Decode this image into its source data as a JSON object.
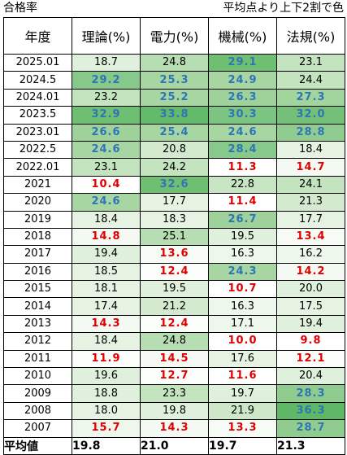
{
  "captions": {
    "left": "合格率",
    "right": "平均点より上下2割で色"
  },
  "headers": [
    "年度",
    "理論(%)",
    "電力(%)",
    "機械(%)",
    "法規(%)"
  ],
  "rows": [
    {
      "year": "2025.01",
      "v": [
        "18.7",
        "24.8",
        "29.1",
        "23.1"
      ],
      "bg": [
        "#dff0dc",
        "#b7ddb2",
        "#6fbf72",
        "#c4e3bf"
      ],
      "st": [
        "",
        "",
        "hi",
        ""
      ]
    },
    {
      "year": "2024.5",
      "v": [
        "29.2",
        "25.3",
        "24.9",
        "24.4"
      ],
      "bg": [
        "#86c98a",
        "#a8d6a3",
        "#a8d6a3",
        "#c4e3bf"
      ],
      "st": [
        "hi",
        "hi",
        "hi",
        ""
      ]
    },
    {
      "year": "2024.01",
      "v": [
        "23.2",
        "25.2",
        "26.3",
        "27.3"
      ],
      "bg": [
        "#c4e3bf",
        "#a8d6a3",
        "#9ed29a",
        "#a2d49e"
      ],
      "st": [
        "",
        "hi",
        "hi",
        "hi"
      ]
    },
    {
      "year": "2023.5",
      "v": [
        "32.9",
        "33.8",
        "30.3",
        "32.0"
      ],
      "bg": [
        "#6fbf72",
        "#63ba6a",
        "#7cc481",
        "#74c079"
      ],
      "st": [
        "hi",
        "hi",
        "hi",
        "hi"
      ]
    },
    {
      "year": "2023.01",
      "v": [
        "26.6",
        "25.4",
        "24.6",
        "28.8"
      ],
      "bg": [
        "#9ed29a",
        "#a8d6a3",
        "#a8d6a3",
        "#90cc90"
      ],
      "st": [
        "hi",
        "hi",
        "hi",
        "hi"
      ]
    },
    {
      "year": "2022.5",
      "v": [
        "24.6",
        "20.8",
        "28.4",
        "18.4"
      ],
      "bg": [
        "#a8d6a3",
        "#d3eacf",
        "#86c98a",
        "#e6f3e3"
      ],
      "st": [
        "hi",
        "",
        "hi",
        ""
      ]
    },
    {
      "year": "2022.01",
      "v": [
        "23.1",
        "24.2",
        "11.3",
        "14.7"
      ],
      "bg": [
        "#c4e3bf",
        "#c4e3bf",
        "#ffffff",
        "#f4f9f3"
      ],
      "st": [
        "",
        "",
        "lo",
        "lo"
      ]
    },
    {
      "year": "2021",
      "v": [
        "10.4",
        "32.6",
        "22.8",
        "24.1"
      ],
      "bg": [
        "#ffffff",
        "#6fbf72",
        "#c8e5c3",
        "#c4e3bf"
      ],
      "st": [
        "lo",
        "hi",
        "",
        ""
      ]
    },
    {
      "year": "2020",
      "v": [
        "24.6",
        "17.7",
        "11.4",
        "21.3"
      ],
      "bg": [
        "#a8d6a3",
        "#e6f3e3",
        "#ffffff",
        "#d3eacf"
      ],
      "st": [
        "hi",
        "",
        "lo",
        ""
      ]
    },
    {
      "year": "2019",
      "v": [
        "18.4",
        "18.3",
        "26.7",
        "17.7"
      ],
      "bg": [
        "#e6f3e3",
        "#e6f3e3",
        "#9ed29a",
        "#e6f3e3"
      ],
      "st": [
        "",
        "",
        "hi",
        ""
      ]
    },
    {
      "year": "2018",
      "v": [
        "14.8",
        "25.1",
        "19.5",
        "13.4"
      ],
      "bg": [
        "#f4f9f3",
        "#b7ddb2",
        "#dff0dc",
        "#f7fbf6"
      ],
      "st": [
        "lo",
        "",
        "",
        "lo"
      ]
    },
    {
      "year": "2017",
      "v": [
        "19.4",
        "13.6",
        "16.3",
        "16.2"
      ],
      "bg": [
        "#dff0dc",
        "#f7fbf6",
        "#eef7ec",
        "#eef7ec"
      ],
      "st": [
        "",
        "lo",
        "",
        ""
      ]
    },
    {
      "year": "2016",
      "v": [
        "18.5",
        "12.4",
        "24.3",
        "14.2"
      ],
      "bg": [
        "#e6f3e3",
        "#fafdf9",
        "#a8d6a3",
        "#f4f9f3"
      ],
      "st": [
        "",
        "lo",
        "hi",
        "lo"
      ]
    },
    {
      "year": "2015",
      "v": [
        "18.1",
        "19.5",
        "10.7",
        "20.0"
      ],
      "bg": [
        "#e6f3e3",
        "#dff0dc",
        "#ffffff",
        "#dff0dc"
      ],
      "st": [
        "",
        "",
        "lo",
        ""
      ]
    },
    {
      "year": "2014",
      "v": [
        "17.4",
        "21.2",
        "16.3",
        "17.5"
      ],
      "bg": [
        "#e6f3e3",
        "#d3eacf",
        "#eef7ec",
        "#e6f3e3"
      ],
      "st": [
        "",
        "",
        "",
        ""
      ]
    },
    {
      "year": "2013",
      "v": [
        "14.3",
        "12.4",
        "17.1",
        "19.4"
      ],
      "bg": [
        "#f4f9f3",
        "#fafdf9",
        "#eef7ec",
        "#dff0dc"
      ],
      "st": [
        "lo",
        "lo",
        "",
        ""
      ]
    },
    {
      "year": "2012",
      "v": [
        "18.4",
        "24.8",
        "10.0",
        "9.8"
      ],
      "bg": [
        "#e6f3e3",
        "#b7ddb2",
        "#ffffff",
        "#ffffff"
      ],
      "st": [
        "",
        "",
        "lo",
        "lo"
      ]
    },
    {
      "year": "2011",
      "v": [
        "11.9",
        "14.5",
        "17.6",
        "12.1"
      ],
      "bg": [
        "#fcfefc",
        "#f4f9f3",
        "#e6f3e3",
        "#fafdf9"
      ],
      "st": [
        "lo",
        "lo",
        "",
        "lo"
      ]
    },
    {
      "year": "2010",
      "v": [
        "19.6",
        "12.7",
        "11.6",
        "20.4"
      ],
      "bg": [
        "#dff0dc",
        "#fafdf9",
        "#ffffff",
        "#dff0dc"
      ],
      "st": [
        "",
        "lo",
        "lo",
        ""
      ]
    },
    {
      "year": "2009",
      "v": [
        "18.8",
        "23.3",
        "19.7",
        "28.3"
      ],
      "bg": [
        "#dff0dc",
        "#c4e3bf",
        "#dff0dc",
        "#90cc90"
      ],
      "st": [
        "",
        "",
        "",
        "hi"
      ]
    },
    {
      "year": "2008",
      "v": [
        "18.0",
        "19.8",
        "21.9",
        "36.3"
      ],
      "bg": [
        "#e6f3e3",
        "#dff0dc",
        "#cde7c8",
        "#5fb866"
      ],
      "st": [
        "",
        "",
        "",
        "hi"
      ]
    },
    {
      "year": "2007",
      "v": [
        "15.7",
        "14.3",
        "13.3",
        "28.7"
      ],
      "bg": [
        "#eef7ec",
        "#f4f9f3",
        "#f7fbf6",
        "#90cc90"
      ],
      "st": [
        "lo",
        "lo",
        "lo",
        "hi"
      ]
    }
  ],
  "average": {
    "label": "平均値",
    "v": [
      "19.8",
      "21.0",
      "19.7",
      "21.3"
    ]
  }
}
